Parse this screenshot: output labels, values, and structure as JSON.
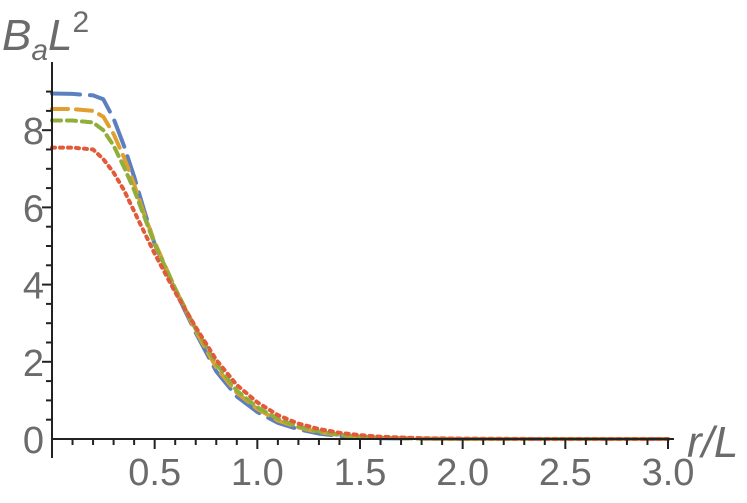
{
  "chart_data": {
    "type": "line",
    "title": "",
    "ylabel": {
      "base": "B",
      "sub": "a",
      "main": "L",
      "sup": "2"
    },
    "xlabel": "r/L",
    "xlim": [
      0,
      3.0
    ],
    "ylim": [
      0,
      9.3
    ],
    "xticks": [
      {
        "value": 0.5,
        "label": "0.5"
      },
      {
        "value": 1.0,
        "label": "1.0"
      },
      {
        "value": 1.5,
        "label": "1.5"
      },
      {
        "value": 2.0,
        "label": "2.0"
      },
      {
        "value": 2.5,
        "label": "2.5"
      },
      {
        "value": 3.0,
        "label": "3.0"
      }
    ],
    "yticks": [
      {
        "value": 0,
        "label": "0"
      },
      {
        "value": 2,
        "label": "2"
      },
      {
        "value": 4,
        "label": "4"
      },
      {
        "value": 6,
        "label": "6"
      },
      {
        "value": 8,
        "label": "8"
      }
    ],
    "grid": false,
    "legend": "none",
    "series": [
      {
        "color": "#5b7fbf",
        "dash": "long",
        "points": [
          [
            0.0,
            8.95
          ],
          [
            0.1,
            8.94
          ],
          [
            0.2,
            8.9
          ],
          [
            0.25,
            8.8
          ],
          [
            0.3,
            8.3
          ],
          [
            0.35,
            7.6
          ],
          [
            0.4,
            6.8
          ],
          [
            0.45,
            5.9
          ],
          [
            0.5,
            5.05
          ],
          [
            0.6,
            3.85
          ],
          [
            0.7,
            2.75
          ],
          [
            0.8,
            1.75
          ],
          [
            0.9,
            1.1
          ],
          [
            1.0,
            0.7
          ],
          [
            1.1,
            0.42
          ],
          [
            1.2,
            0.25
          ],
          [
            1.3,
            0.14
          ],
          [
            1.4,
            0.08
          ],
          [
            1.5,
            0.04
          ],
          [
            1.6,
            0.02
          ],
          [
            1.8,
            0.01
          ],
          [
            2.0,
            0.0
          ],
          [
            3.0,
            0.0
          ]
        ]
      },
      {
        "color": "#e0a030",
        "dash": "medium",
        "points": [
          [
            0.0,
            8.55
          ],
          [
            0.1,
            8.55
          ],
          [
            0.2,
            8.5
          ],
          [
            0.25,
            8.35
          ],
          [
            0.3,
            7.9
          ],
          [
            0.35,
            7.3
          ],
          [
            0.4,
            6.6
          ],
          [
            0.45,
            5.8
          ],
          [
            0.5,
            5.1
          ],
          [
            0.6,
            3.9
          ],
          [
            0.7,
            2.8
          ],
          [
            0.8,
            1.85
          ],
          [
            0.9,
            1.2
          ],
          [
            1.0,
            0.78
          ],
          [
            1.1,
            0.48
          ],
          [
            1.2,
            0.3
          ],
          [
            1.3,
            0.18
          ],
          [
            1.4,
            0.1
          ],
          [
            1.5,
            0.05
          ],
          [
            1.6,
            0.03
          ],
          [
            1.8,
            0.01
          ],
          [
            2.0,
            0.0
          ],
          [
            3.0,
            0.0
          ]
        ]
      },
      {
        "color": "#8faf3a",
        "dash": "short",
        "points": [
          [
            0.0,
            8.25
          ],
          [
            0.1,
            8.25
          ],
          [
            0.2,
            8.2
          ],
          [
            0.25,
            8.0
          ],
          [
            0.3,
            7.6
          ],
          [
            0.35,
            7.05
          ],
          [
            0.4,
            6.45
          ],
          [
            0.45,
            5.75
          ],
          [
            0.5,
            5.05
          ],
          [
            0.6,
            3.9
          ],
          [
            0.7,
            2.85
          ],
          [
            0.8,
            1.95
          ],
          [
            0.9,
            1.25
          ],
          [
            1.0,
            0.82
          ],
          [
            1.1,
            0.52
          ],
          [
            1.2,
            0.32
          ],
          [
            1.3,
            0.2
          ],
          [
            1.4,
            0.11
          ],
          [
            1.5,
            0.06
          ],
          [
            1.6,
            0.03
          ],
          [
            1.8,
            0.01
          ],
          [
            2.0,
            0.0
          ],
          [
            3.0,
            0.0
          ]
        ]
      },
      {
        "color": "#e25a3a",
        "dash": "dotted",
        "points": [
          [
            0.0,
            7.55
          ],
          [
            0.1,
            7.55
          ],
          [
            0.2,
            7.5
          ],
          [
            0.25,
            7.25
          ],
          [
            0.3,
            6.9
          ],
          [
            0.35,
            6.45
          ],
          [
            0.4,
            5.9
          ],
          [
            0.45,
            5.35
          ],
          [
            0.5,
            4.8
          ],
          [
            0.6,
            3.8
          ],
          [
            0.7,
            2.9
          ],
          [
            0.8,
            2.05
          ],
          [
            0.9,
            1.4
          ],
          [
            1.0,
            0.95
          ],
          [
            1.1,
            0.62
          ],
          [
            1.2,
            0.4
          ],
          [
            1.3,
            0.26
          ],
          [
            1.4,
            0.16
          ],
          [
            1.5,
            0.1
          ],
          [
            1.6,
            0.06
          ],
          [
            1.7,
            0.04
          ],
          [
            1.8,
            0.02
          ],
          [
            2.0,
            0.01
          ],
          [
            2.4,
            0.0
          ],
          [
            3.0,
            0.0
          ]
        ]
      }
    ]
  }
}
